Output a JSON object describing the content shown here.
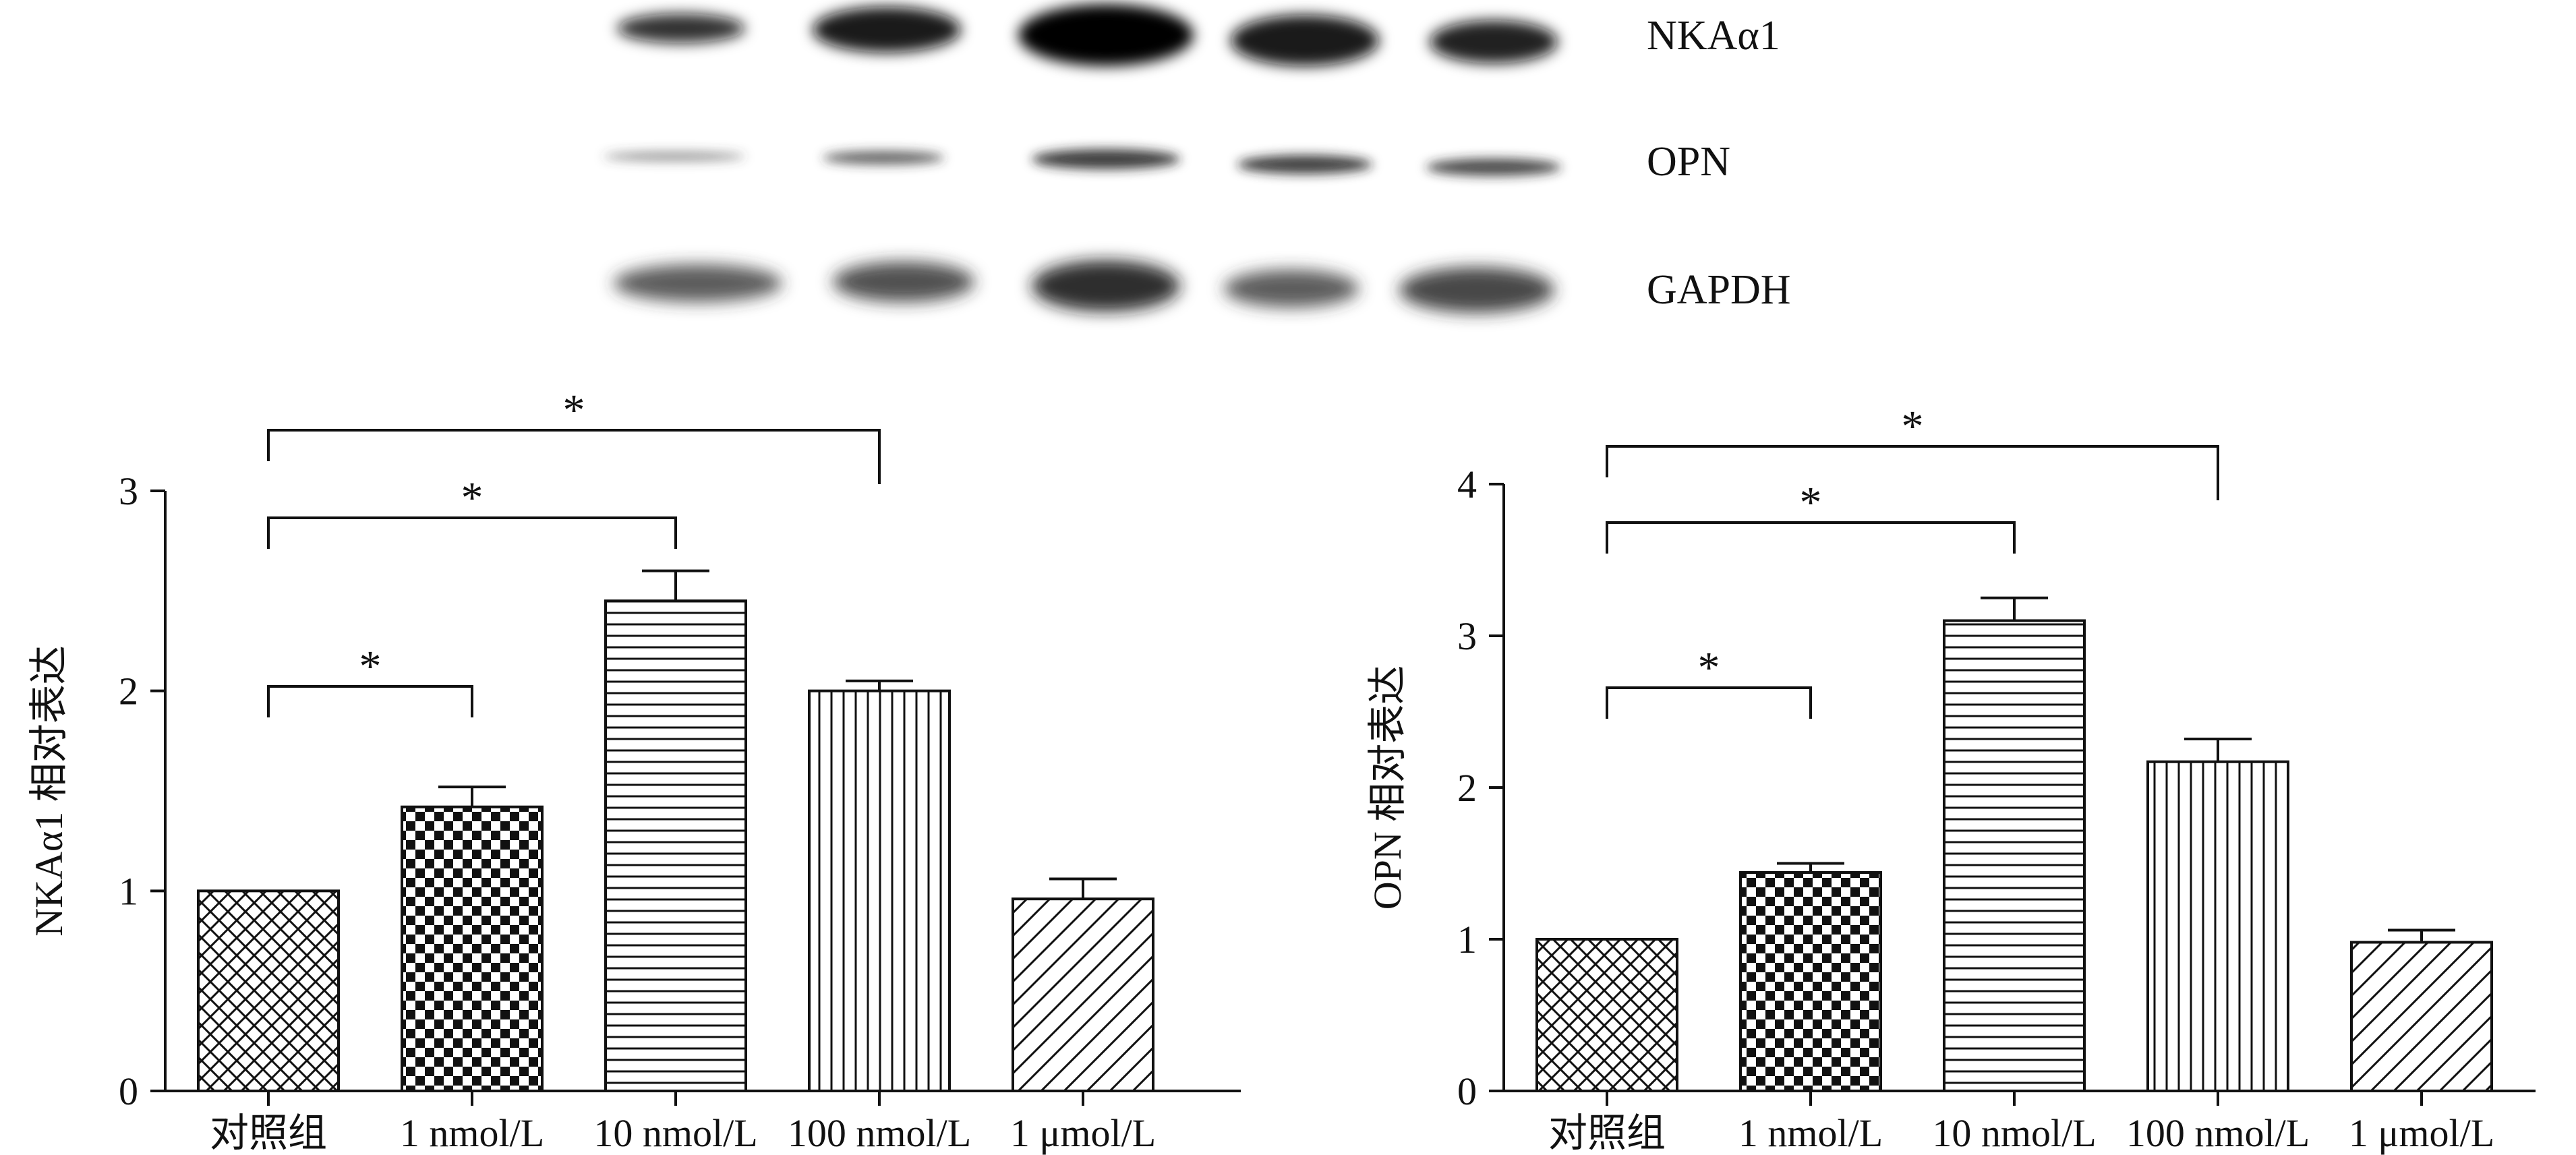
{
  "blot": {
    "labels": [
      "NKAα1",
      "OPN",
      "GAPDH"
    ],
    "lanes": 5
  },
  "chart_data": [
    {
      "type": "bar",
      "categories": [
        "对照组",
        "1 nmol/L",
        "10 nmol/L",
        "100 nmol/L",
        "1 μmol/L"
      ],
      "values": [
        1.0,
        1.42,
        2.45,
        2.0,
        0.96
      ],
      "errors": [
        0.0,
        0.1,
        0.15,
        0.05,
        0.1
      ],
      "patterns": [
        "crosshatch",
        "checker",
        "horizontal",
        "vertical",
        "diagonal"
      ],
      "ylabel": "NKAα1 相对表达",
      "ylim": [
        0,
        3
      ],
      "yticks": [
        0,
        1,
        2,
        3
      ],
      "grid": false,
      "significance": [
        {
          "from": 0,
          "to": 1,
          "label": "*"
        },
        {
          "from": 0,
          "to": 2,
          "label": "*"
        },
        {
          "from": 0,
          "to": 3,
          "label": "*"
        }
      ]
    },
    {
      "type": "bar",
      "categories": [
        "对照组",
        "1 nmol/L",
        "10 nmol/L",
        "100 nmol/L",
        "1 μmol/L"
      ],
      "values": [
        1.0,
        1.44,
        3.1,
        2.17,
        0.98
      ],
      "errors": [
        0.0,
        0.06,
        0.15,
        0.15,
        0.08
      ],
      "patterns": [
        "crosshatch",
        "checker",
        "horizontal",
        "vertical",
        "diagonal"
      ],
      "ylabel": "OPN 相对表达",
      "ylim": [
        0,
        4
      ],
      "yticks": [
        0,
        1,
        2,
        3,
        4
      ],
      "grid": false,
      "significance": [
        {
          "from": 0,
          "to": 1,
          "label": "*"
        },
        {
          "from": 0,
          "to": 2,
          "label": "*"
        },
        {
          "from": 0,
          "to": 3,
          "label": "*"
        }
      ]
    }
  ]
}
